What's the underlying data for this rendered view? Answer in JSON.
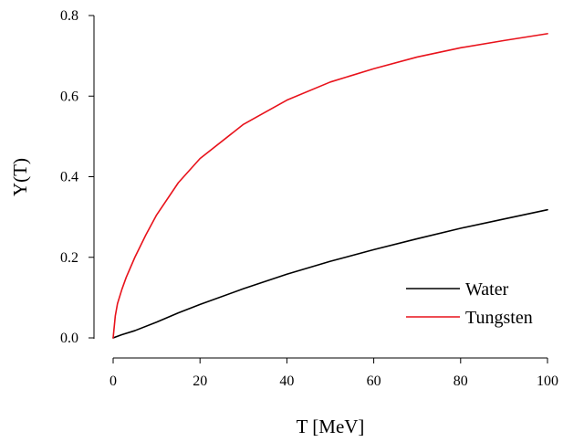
{
  "chart_data": {
    "type": "line",
    "xlabel": "T [MeV]",
    "ylabel": "Y(T)",
    "xlim": [
      0,
      100
    ],
    "ylim": [
      0,
      0.8
    ],
    "xticks": [
      "0",
      "20",
      "40",
      "60",
      "80",
      "100"
    ],
    "yticks": [
      "0.0",
      "0.2",
      "0.4",
      "0.6",
      "0.8"
    ],
    "grid": false,
    "legend_position": "bottom-right",
    "series": [
      {
        "name": "Water",
        "color": "#000000",
        "x": [
          0,
          1,
          2,
          5,
          10,
          15,
          20,
          30,
          40,
          50,
          60,
          70,
          80,
          90,
          100
        ],
        "y": [
          0,
          0.004,
          0.008,
          0.018,
          0.039,
          0.062,
          0.083,
          0.122,
          0.158,
          0.19,
          0.219,
          0.246,
          0.272,
          0.295,
          0.318
        ]
      },
      {
        "name": "Tungsten",
        "color": "#e8121b",
        "x": [
          0,
          0.5,
          1,
          2,
          3,
          5,
          7.5,
          10,
          15,
          20,
          30,
          40,
          50,
          60,
          70,
          80,
          90,
          100
        ],
        "y": [
          0,
          0.055,
          0.085,
          0.12,
          0.15,
          0.2,
          0.255,
          0.305,
          0.385,
          0.445,
          0.53,
          0.59,
          0.635,
          0.668,
          0.697,
          0.72,
          0.738,
          0.755
        ]
      }
    ]
  }
}
